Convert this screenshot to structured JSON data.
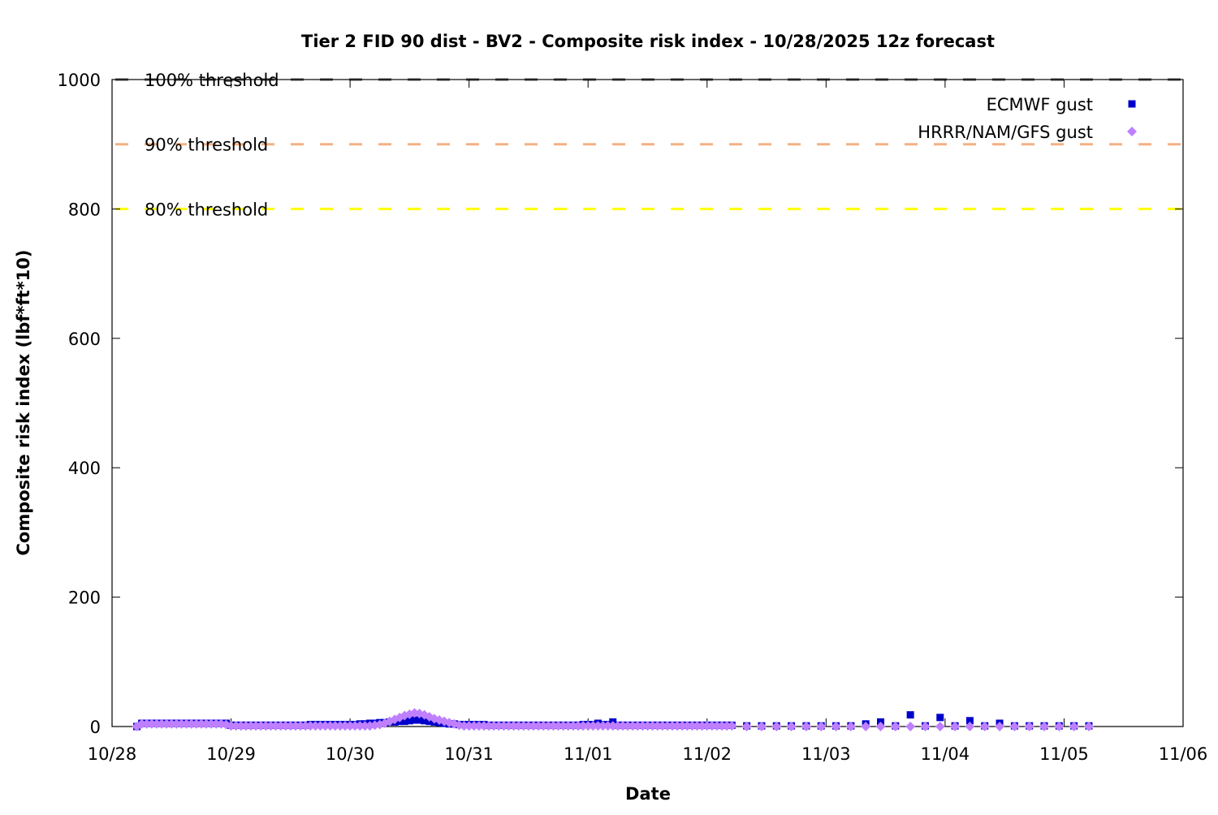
{
  "chart_data": {
    "type": "scatter",
    "title": "Tier 2 FID 90 dist - BV2 - Composite risk index - 10/28/2025 12z forecast",
    "xlabel": "Date",
    "ylabel": "Composite risk index (lbf*ft*10)",
    "xlim": [
      "2025-10-28T00:00",
      "2025-11-06T00:00"
    ],
    "ylim": [
      0,
      1000
    ],
    "xticks": [
      "10/28",
      "10/29",
      "10/30",
      "10/31",
      "11/01",
      "11/02",
      "11/03",
      "11/04",
      "11/05",
      "11/06"
    ],
    "yticks": [
      0,
      200,
      400,
      600,
      800,
      1000
    ],
    "grid": false,
    "legend_position": "top-right",
    "thresholds": [
      {
        "label": "100% threshold",
        "value": 1000,
        "color": "#555555"
      },
      {
        "label": "90% threshold",
        "value": 900,
        "color": "#f4b183"
      },
      {
        "label": "80% threshold",
        "value": 800,
        "color": "#ffff00"
      }
    ],
    "x": [
      "2025-10-28T05:00",
      "2025-10-28T06:00",
      "2025-10-28T07:00",
      "2025-10-28T08:00",
      "2025-10-28T09:00",
      "2025-10-28T10:00",
      "2025-10-28T11:00",
      "2025-10-28T12:00",
      "2025-10-28T13:00",
      "2025-10-28T14:00",
      "2025-10-28T15:00",
      "2025-10-28T16:00",
      "2025-10-28T17:00",
      "2025-10-28T18:00",
      "2025-10-28T19:00",
      "2025-10-28T20:00",
      "2025-10-28T21:00",
      "2025-10-28T22:00",
      "2025-10-28T23:00",
      "2025-10-29T00:00",
      "2025-10-29T01:00",
      "2025-10-29T02:00",
      "2025-10-29T03:00",
      "2025-10-29T04:00",
      "2025-10-29T05:00",
      "2025-10-29T06:00",
      "2025-10-29T07:00",
      "2025-10-29T08:00",
      "2025-10-29T09:00",
      "2025-10-29T10:00",
      "2025-10-29T11:00",
      "2025-10-29T12:00",
      "2025-10-29T13:00",
      "2025-10-29T14:00",
      "2025-10-29T15:00",
      "2025-10-29T16:00",
      "2025-10-29T17:00",
      "2025-10-29T18:00",
      "2025-10-29T19:00",
      "2025-10-29T20:00",
      "2025-10-29T21:00",
      "2025-10-29T22:00",
      "2025-10-29T23:00",
      "2025-10-30T00:00",
      "2025-10-30T01:00",
      "2025-10-30T02:00",
      "2025-10-30T03:00",
      "2025-10-30T04:00",
      "2025-10-30T05:00",
      "2025-10-30T06:00",
      "2025-10-30T07:00",
      "2025-10-30T08:00",
      "2025-10-30T09:00",
      "2025-10-30T10:00",
      "2025-10-30T11:00",
      "2025-10-30T12:00",
      "2025-10-30T13:00",
      "2025-10-30T14:00",
      "2025-10-30T15:00",
      "2025-10-30T16:00",
      "2025-10-30T17:00",
      "2025-10-30T18:00",
      "2025-10-30T19:00",
      "2025-10-30T20:00",
      "2025-10-30T21:00",
      "2025-10-30T22:00",
      "2025-10-30T23:00",
      "2025-10-31T00:00",
      "2025-10-31T01:00",
      "2025-10-31T02:00",
      "2025-10-31T03:00",
      "2025-10-31T04:00",
      "2025-10-31T05:00",
      "2025-10-31T06:00",
      "2025-10-31T07:00",
      "2025-10-31T08:00",
      "2025-10-31T09:00",
      "2025-10-31T10:00",
      "2025-10-31T11:00",
      "2025-10-31T12:00",
      "2025-10-31T13:00",
      "2025-10-31T14:00",
      "2025-10-31T15:00",
      "2025-10-31T16:00",
      "2025-10-31T17:00",
      "2025-10-31T18:00",
      "2025-10-31T19:00",
      "2025-10-31T20:00",
      "2025-10-31T21:00",
      "2025-10-31T22:00",
      "2025-10-31T23:00",
      "2025-11-01T00:00",
      "2025-11-01T01:00",
      "2025-11-01T02:00",
      "2025-11-01T03:00",
      "2025-11-01T04:00",
      "2025-11-01T05:00",
      "2025-11-01T06:00",
      "2025-11-01T07:00",
      "2025-11-01T08:00",
      "2025-11-01T09:00",
      "2025-11-01T10:00",
      "2025-11-01T11:00",
      "2025-11-01T12:00",
      "2025-11-01T13:00",
      "2025-11-01T14:00",
      "2025-11-01T15:00",
      "2025-11-01T16:00",
      "2025-11-01T17:00",
      "2025-11-01T18:00",
      "2025-11-01T19:00",
      "2025-11-01T20:00",
      "2025-11-01T21:00",
      "2025-11-01T22:00",
      "2025-11-01T23:00",
      "2025-11-02T00:00",
      "2025-11-02T01:00",
      "2025-11-02T02:00",
      "2025-11-02T03:00",
      "2025-11-02T04:00",
      "2025-11-02T05:00",
      "2025-11-02T08:00",
      "2025-11-02T11:00",
      "2025-11-02T14:00",
      "2025-11-02T17:00",
      "2025-11-02T20:00",
      "2025-11-02T23:00",
      "2025-11-03T02:00",
      "2025-11-03T05:00",
      "2025-11-03T08:00",
      "2025-11-03T11:00",
      "2025-11-03T14:00",
      "2025-11-03T17:00",
      "2025-11-03T20:00",
      "2025-11-03T23:00",
      "2025-11-04T02:00",
      "2025-11-04T05:00",
      "2025-11-04T08:00",
      "2025-11-04T11:00",
      "2025-11-04T14:00",
      "2025-11-04T17:00",
      "2025-11-04T20:00",
      "2025-11-04T23:00",
      "2025-11-05T02:00",
      "2025-11-05T05:00"
    ],
    "series": [
      {
        "name": "ECMWF gust",
        "marker": "square",
        "color": "#0000cc",
        "values": [
          0,
          5,
          5,
          5,
          5,
          5,
          5,
          5,
          5,
          5,
          5,
          5,
          5,
          5,
          5,
          5,
          5,
          5,
          5,
          2,
          2,
          2,
          2,
          2,
          2,
          2,
          2,
          2,
          2,
          2,
          2,
          2,
          2,
          2,
          2,
          3,
          3,
          3,
          3,
          3,
          3,
          3,
          3,
          3,
          3,
          4,
          4,
          5,
          5,
          6,
          6,
          7,
          7,
          8,
          8,
          9,
          10,
          10,
          9,
          8,
          7,
          6,
          5,
          4,
          4,
          3,
          3,
          3,
          3,
          3,
          3,
          2,
          2,
          2,
          2,
          2,
          2,
          2,
          2,
          2,
          2,
          2,
          2,
          2,
          2,
          2,
          2,
          2,
          2,
          2,
          3,
          3,
          3,
          5,
          3,
          3,
          7,
          2,
          2,
          2,
          2,
          2,
          2,
          2,
          2,
          2,
          2,
          2,
          2,
          2,
          2,
          2,
          2,
          2,
          2,
          2,
          2,
          2,
          2,
          2,
          2,
          1,
          1,
          1,
          1,
          1,
          1,
          1,
          1,
          4,
          7,
          1,
          18,
          1,
          14,
          1,
          9,
          1,
          5,
          1,
          1,
          1,
          1,
          1,
          1
        ]
      },
      {
        "name": "HRRR/NAM/GFS gust",
        "marker": "diamond",
        "color": "#bf80ff",
        "values": [
          0,
          4,
          4,
          4,
          4,
          4,
          4,
          4,
          4,
          4,
          4,
          4,
          4,
          4,
          4,
          4,
          4,
          4,
          3,
          1,
          1,
          1,
          1,
          1,
          1,
          1,
          1,
          1,
          1,
          1,
          1,
          1,
          1,
          1,
          1,
          1,
          1,
          1,
          1,
          1,
          1,
          1,
          1,
          1,
          1,
          1,
          1,
          1,
          2,
          3,
          5,
          8,
          11,
          14,
          17,
          19,
          21,
          20,
          18,
          15,
          12,
          10,
          8,
          6,
          4,
          2,
          1,
          1,
          1,
          1,
          1,
          1,
          1,
          1,
          1,
          1,
          1,
          1,
          1,
          1,
          1,
          1,
          1,
          1,
          1,
          1,
          1,
          1,
          1,
          1,
          1,
          1,
          1,
          1,
          1,
          1,
          1,
          1,
          1,
          1,
          1,
          1,
          1,
          1,
          1,
          1,
          1,
          1,
          1,
          1,
          1,
          1,
          1,
          1,
          1,
          1,
          1,
          1,
          1,
          1,
          1,
          0,
          0,
          0,
          0,
          0,
          0,
          0,
          0,
          0,
          0,
          0,
          0,
          0,
          0,
          0,
          0,
          0,
          0,
          0,
          0,
          0,
          0,
          0,
          0
        ]
      }
    ]
  }
}
